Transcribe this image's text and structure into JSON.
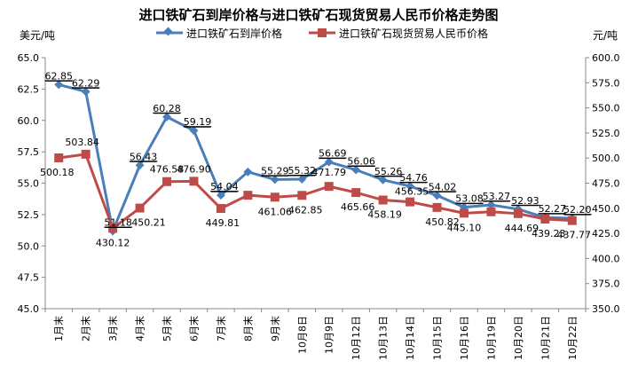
{
  "chart_data": {
    "type": "line",
    "title": "进口铁矿石到岸价格与进口铁矿石现货贸易人民币价格走势图",
    "ylabel_left": "美元/吨",
    "ylabel_right": "元/吨",
    "legend_position": "top",
    "grid": false,
    "categories": [
      "1月末",
      "2月末",
      "3月末",
      "4月末",
      "5月末",
      "6月末",
      "7月末",
      "8月末",
      "9月末",
      "10月8日",
      "10月9日",
      "10月12日",
      "10月13日",
      "10月14日",
      "10月15日",
      "10月16日",
      "10月19日",
      "10月20日",
      "10月21日",
      "10月22日"
    ],
    "y_left": {
      "min": 45.0,
      "max": 65.0,
      "step": 2.5,
      "ticks": [
        "45.0",
        "47.5",
        "50.0",
        "52.5",
        "55.0",
        "57.5",
        "60.0",
        "62.5",
        "65.0"
      ]
    },
    "y_right": {
      "min": 350.0,
      "max": 600.0,
      "step": 25,
      "ticks": [
        "350.0",
        "375.0",
        "400.0",
        "425.0",
        "450.0",
        "475.0",
        "500.0",
        "525.0",
        "550.0",
        "575.0",
        "600.0"
      ]
    },
    "series": [
      {
        "name": "进口铁矿石到岸价格",
        "axis": "left",
        "color": "#4A7EBB",
        "marker": "diamond",
        "values": [
          62.85,
          62.29,
          51.18,
          56.43,
          60.28,
          59.19,
          54.04,
          55.9,
          55.29,
          55.32,
          56.69,
          56.06,
          55.26,
          54.76,
          54.02,
          53.08,
          53.27,
          52.93,
          52.27,
          52.2
        ],
        "labels": [
          "62.85",
          "62.29",
          "51.18",
          "56.43",
          "60.28",
          "59.19",
          "54.04",
          null,
          "55.29",
          "55.32",
          "56.69",
          "56.06",
          "55.26",
          "54.76",
          "54.02",
          "53.08",
          "53.27",
          "52.93",
          "52.27",
          "52.20"
        ]
      },
      {
        "name": "进口铁矿石现货贸易人民币价格",
        "axis": "right",
        "color": "#BE4B48",
        "marker": "square",
        "values": [
          500.18,
          503.84,
          430.12,
          450.21,
          476.58,
          476.9,
          449.81,
          463.0,
          461.06,
          462.85,
          471.79,
          465.66,
          458.19,
          456.35,
          450.82,
          445.1,
          446.5,
          444.69,
          439.23,
          437.77
        ],
        "labels": [
          "500.18",
          "503.84",
          "430.12",
          "450.21",
          "476.58",
          "476.90",
          "449.81",
          null,
          "461.06",
          "462.85",
          "471.79",
          "465.66",
          "458.19",
          "456.35",
          "450.82",
          "445.10",
          null,
          "444.69",
          "439.23",
          "437.77"
        ]
      }
    ]
  }
}
